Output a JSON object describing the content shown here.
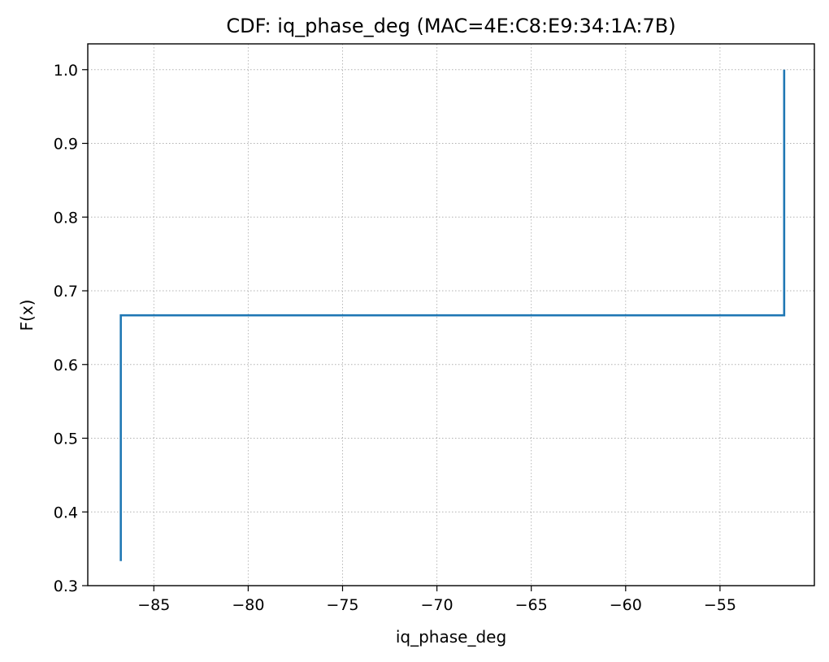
{
  "chart_data": {
    "type": "line",
    "subtype": "step-cdf",
    "title": "CDF: iq_phase_deg (MAC=4E:C8:E9:34:1A:7B)",
    "xlabel": "iq_phase_deg",
    "ylabel": "F(x)",
    "xlim": [
      -88.5,
      -50.0
    ],
    "ylim": [
      0.3,
      1.035
    ],
    "grid": true,
    "x_ticks": [
      -85,
      -80,
      -75,
      -70,
      -65,
      -60,
      -55
    ],
    "x_tick_labels": [
      "−85",
      "−80",
      "−75",
      "−70",
      "−65",
      "−60",
      "−55"
    ],
    "y_ticks": [
      0.3,
      0.4,
      0.5,
      0.6,
      0.7,
      0.8,
      0.9,
      1.0
    ],
    "y_tick_labels": [
      "0.3",
      "0.4",
      "0.5",
      "0.6",
      "0.7",
      "0.8",
      "0.9",
      "1.0"
    ],
    "series": [
      {
        "color": "#1f77b4",
        "x": [
          -86.75,
          -86.75,
          -51.6,
          -51.6
        ],
        "y": [
          0.3333,
          0.6667,
          0.6667,
          1.0
        ]
      }
    ]
  }
}
